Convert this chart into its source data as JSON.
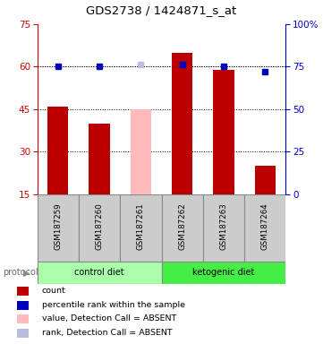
{
  "title": "GDS2738 / 1424871_s_at",
  "samples": [
    "GSM187259",
    "GSM187260",
    "GSM187261",
    "GSM187262",
    "GSM187263",
    "GSM187264"
  ],
  "bar_values": [
    46,
    40,
    null,
    65,
    59,
    25
  ],
  "absent_bar_value": 45,
  "absent_bar_index": 2,
  "absent_bar_color": "#ffbbbb",
  "bar_color": "#bb0000",
  "rank_values": [
    75,
    75,
    null,
    76,
    75,
    72
  ],
  "absent_rank_value": 76,
  "absent_rank_index": 2,
  "absent_rank_color": "#bbbbdd",
  "rank_color": "#0000bb",
  "ylim_left": [
    15,
    75
  ],
  "ylim_right": [
    0,
    100
  ],
  "yticks_left": [
    15,
    30,
    45,
    60,
    75
  ],
  "yticks_right": [
    0,
    25,
    50,
    75,
    100
  ],
  "ytick_labels_right": [
    "0",
    "25",
    "50",
    "75",
    "100%"
  ],
  "left_axis_color": "#cc0000",
  "right_axis_color": "#0000cc",
  "grid_yticks": [
    30,
    45,
    60
  ],
  "protocol_colors": [
    "#aaffaa",
    "#44ee44"
  ],
  "legend_items": [
    {
      "label": "count",
      "color": "#bb0000"
    },
    {
      "label": "percentile rank within the sample",
      "color": "#0000bb"
    },
    {
      "label": "value, Detection Call = ABSENT",
      "color": "#ffbbbb"
    },
    {
      "label": "rank, Detection Call = ABSENT",
      "color": "#bbbbdd"
    }
  ]
}
